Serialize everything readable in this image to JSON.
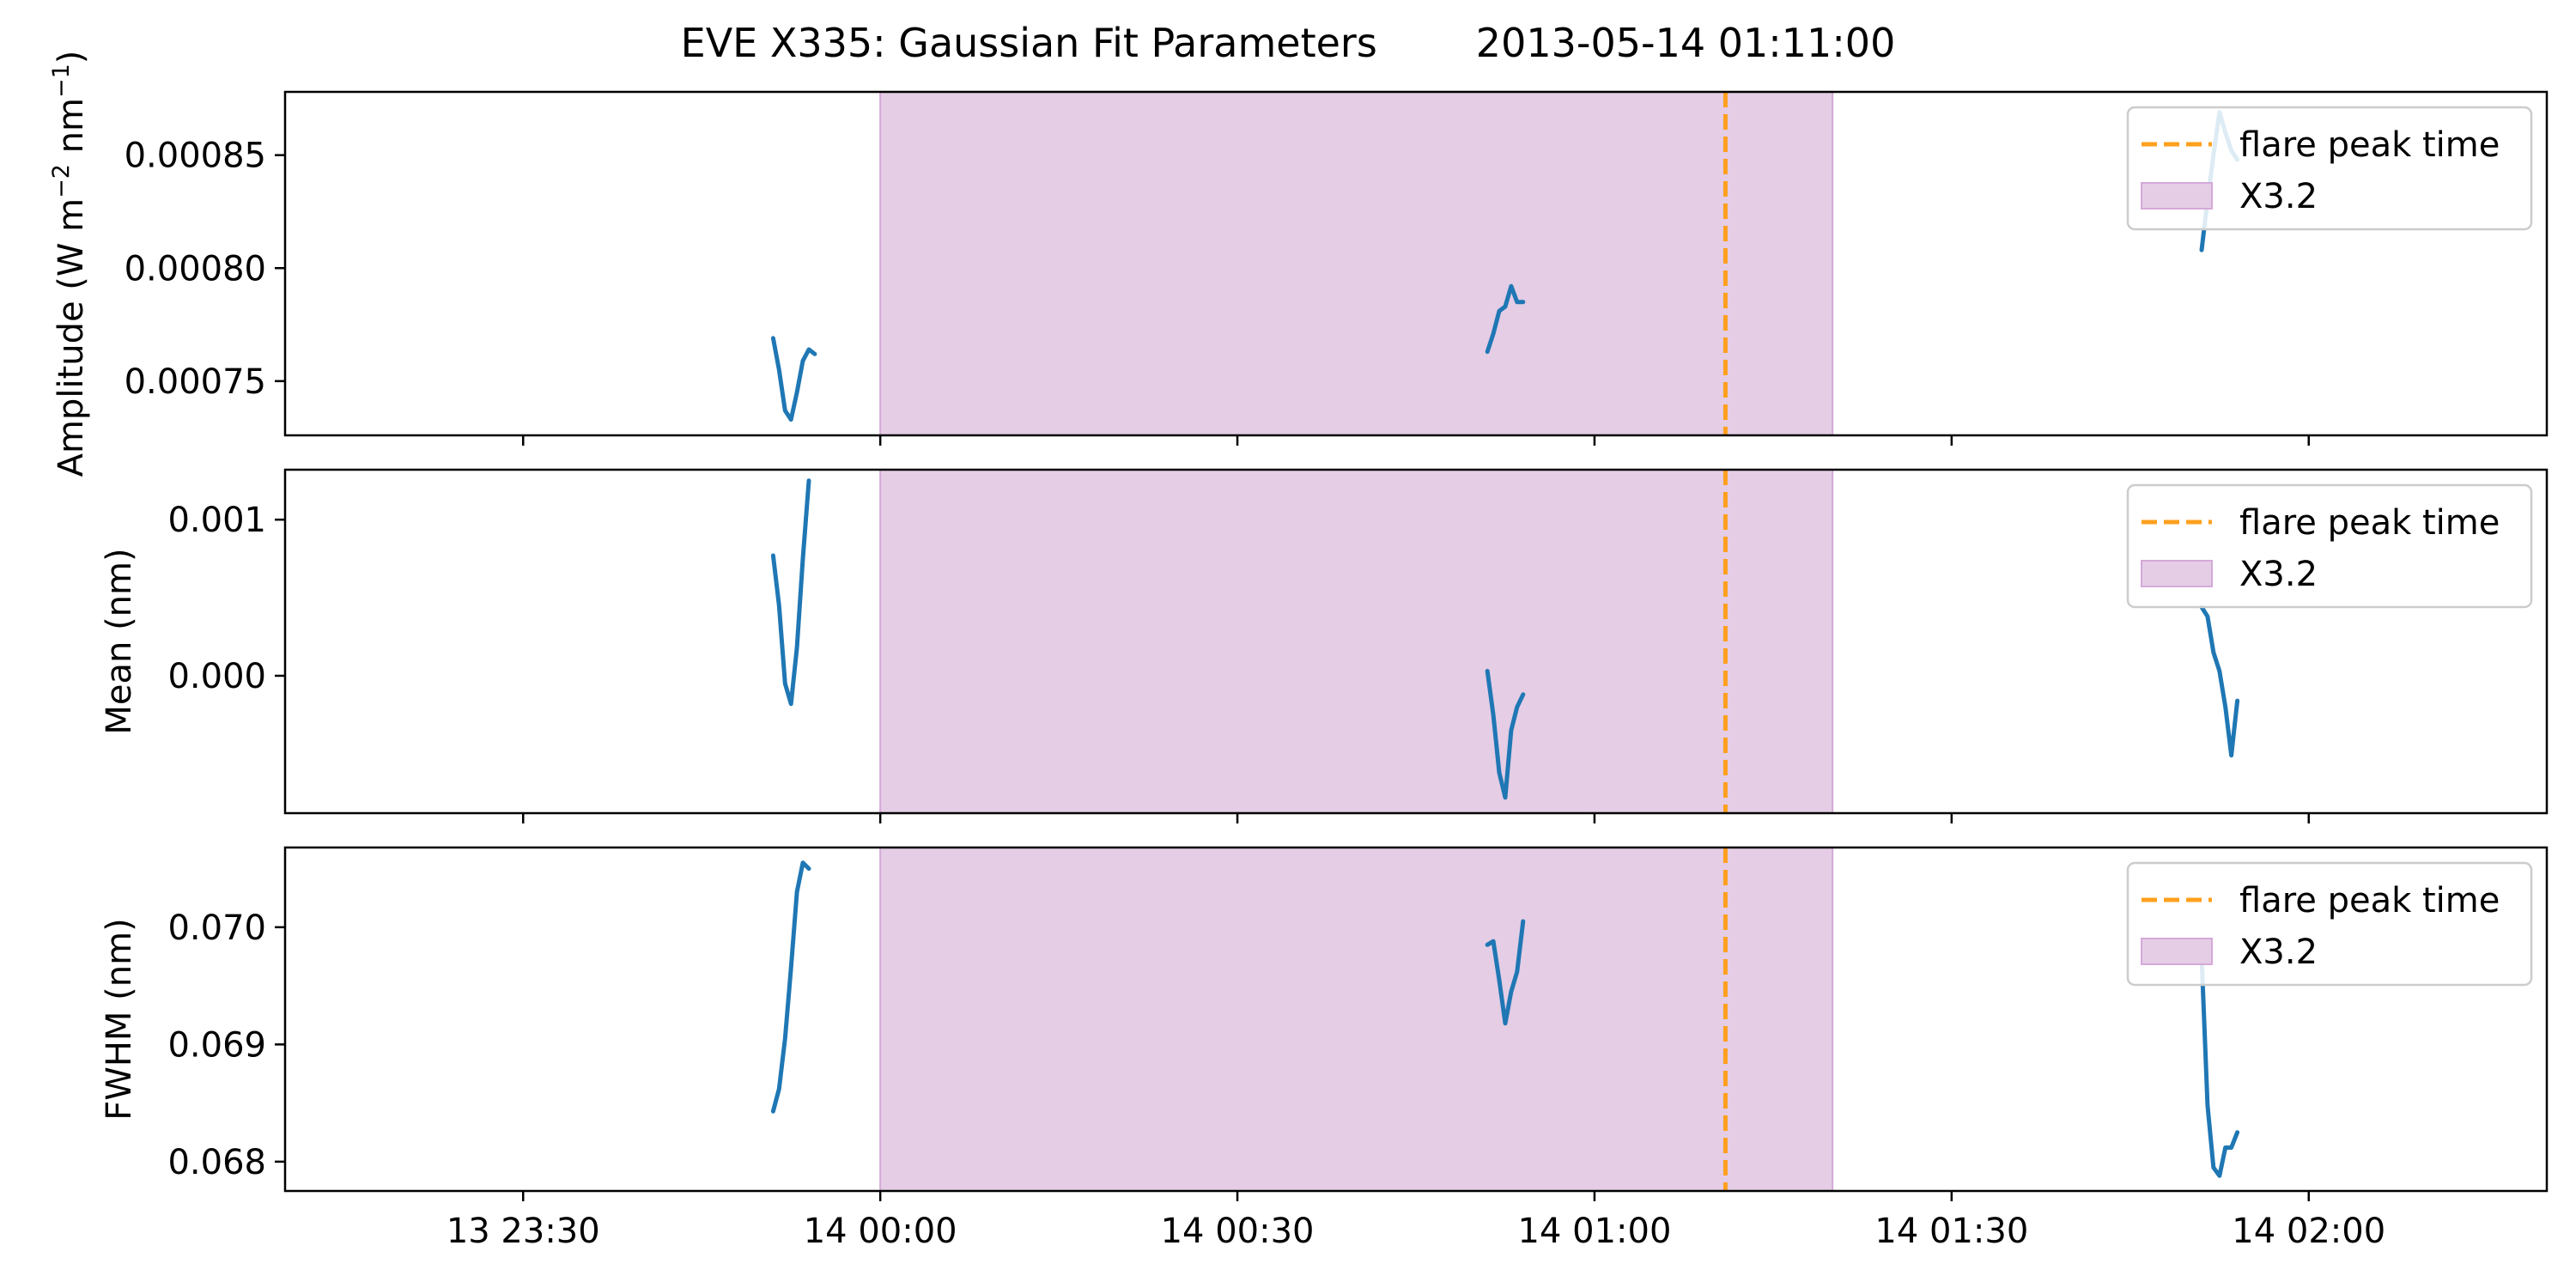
{
  "chart_data": {
    "type": "line",
    "title": "EVE X335: Gaussian Fit Parameters",
    "title_time": "2013-05-14 01:11:00",
    "x_axis": {
      "unit": "time",
      "range": [
        "2013-05-13 23:10",
        "2013-05-14 02:20"
      ],
      "ticks": [
        {
          "value": "2013-05-13 23:30",
          "label": "13 23:30"
        },
        {
          "value": "2013-05-14 00:00",
          "label": "14 00:00"
        },
        {
          "value": "2013-05-14 00:30",
          "label": "14 00:30"
        },
        {
          "value": "2013-05-14 01:00",
          "label": "14 01:00"
        },
        {
          "value": "2013-05-14 01:30",
          "label": "14 01:30"
        },
        {
          "value": "2013-05-14 02:00",
          "label": "14 02:00"
        }
      ]
    },
    "flare_peak_time": "2013-05-14 01:11",
    "flare_interval": {
      "start": "2013-05-14 00:00",
      "end": "2013-05-14 01:20",
      "label": "X3.2"
    },
    "legend": {
      "position": "upper right",
      "entries": [
        {
          "label": "flare peak time",
          "color": "#ff9f1c",
          "style": "dashed"
        },
        {
          "label": "X3.2",
          "color": "#e4cde6",
          "style": "patch"
        }
      ]
    },
    "colors": {
      "series": "#1f77b4",
      "peak": "#ffa01e",
      "shade": "#e4cde5",
      "shade_edge": "#d4a9d8"
    },
    "panels": [
      {
        "ylabel_parts": [
          "Amplitude (W m",
          "−2",
          " nm",
          "−1",
          ")"
        ],
        "ylim": [
          0.000726,
          0.000878
        ],
        "yticks": [
          {
            "value": 0.00075,
            "label": "0.00075"
          },
          {
            "value": 0.0008,
            "label": "0.00080"
          },
          {
            "value": 0.00085,
            "label": "0.00085"
          }
        ],
        "segments": [
          {
            "t": [
              "2013-05-13 23:51:00",
              "2013-05-13 23:51:30",
              "2013-05-13 23:52:00",
              "2013-05-13 23:52:30",
              "2013-05-13 23:53:00",
              "2013-05-13 23:53:30",
              "2013-05-13 23:54:00",
              "2013-05-13 23:54:30"
            ],
            "y": [
              0.000769,
              0.000755,
              0.000737,
              0.000733,
              0.000745,
              0.000759,
              0.000764,
              0.000762
            ]
          },
          {
            "t": [
              "2013-05-14 00:51:00",
              "2013-05-14 00:51:30",
              "2013-05-14 00:52:00",
              "2013-05-14 00:52:30",
              "2013-05-14 00:53:00",
              "2013-05-14 00:53:30",
              "2013-05-14 00:54:00"
            ],
            "y": [
              0.000763,
              0.000771,
              0.000781,
              0.000783,
              0.000792,
              0.000785,
              0.000785
            ]
          },
          {
            "t": [
              "2013-05-14 01:51:00",
              "2013-05-14 01:51:30",
              "2013-05-14 01:52:00",
              "2013-05-14 01:52:30",
              "2013-05-14 01:53:00",
              "2013-05-14 01:53:30",
              "2013-05-14 01:54:00"
            ],
            "y": [
              0.000808,
              0.00083,
              0.00085,
              0.000869,
              0.00086,
              0.000852,
              0.000848
            ]
          }
        ]
      },
      {
        "ylabel_parts": [
          "Mean (nm)"
        ],
        "ylim": [
          -0.00088,
          0.00132
        ],
        "yticks": [
          {
            "value": 0.0,
            "label": "0.000"
          },
          {
            "value": 0.001,
            "label": "0.001"
          }
        ],
        "segments": [
          {
            "t": [
              "2013-05-13 23:51:00",
              "2013-05-13 23:51:30",
              "2013-05-13 23:52:00",
              "2013-05-13 23:52:30",
              "2013-05-13 23:53:00",
              "2013-05-13 23:53:30",
              "2013-05-13 23:54:00"
            ],
            "y": [
              0.00077,
              0.00045,
              -5e-05,
              -0.00018,
              0.00018,
              0.00075,
              0.00125
            ]
          },
          {
            "t": [
              "2013-05-14 00:51:00",
              "2013-05-14 00:51:30",
              "2013-05-14 00:52:00",
              "2013-05-14 00:52:30",
              "2013-05-14 00:53:00",
              "2013-05-14 00:53:30",
              "2013-05-14 00:54:00"
            ],
            "y": [
              3e-05,
              -0.00025,
              -0.00062,
              -0.00078,
              -0.00035,
              -0.0002,
              -0.00012
            ]
          },
          {
            "t": [
              "2013-05-14 01:51:00",
              "2013-05-14 01:51:30",
              "2013-05-14 01:52:00",
              "2013-05-14 01:52:30",
              "2013-05-14 01:53:00",
              "2013-05-14 01:53:30",
              "2013-05-14 01:54:00"
            ],
            "y": [
              0.00044,
              0.00038,
              0.00015,
              3e-05,
              -0.0002,
              -0.00051,
              -0.00016
            ]
          }
        ]
      },
      {
        "ylabel_parts": [
          "FWHM (nm)"
        ],
        "ylim": [
          0.06775,
          0.07068
        ],
        "yticks": [
          {
            "value": 0.068,
            "label": "0.068"
          },
          {
            "value": 0.069,
            "label": "0.069"
          },
          {
            "value": 0.07,
            "label": "0.070"
          }
        ],
        "segments": [
          {
            "t": [
              "2013-05-13 23:51:00",
              "2013-05-13 23:51:30",
              "2013-05-13 23:52:00",
              "2013-05-13 23:52:30",
              "2013-05-13 23:53:00",
              "2013-05-13 23:53:30",
              "2013-05-13 23:54:00"
            ],
            "y": [
              0.06843,
              0.06862,
              0.06905,
              0.06965,
              0.0703,
              0.07055,
              0.0705
            ]
          },
          {
            "t": [
              "2013-05-14 00:51:00",
              "2013-05-14 00:51:30",
              "2013-05-14 00:52:00",
              "2013-05-14 00:52:30",
              "2013-05-14 00:53:00",
              "2013-05-14 00:53:30",
              "2013-05-14 00:54:00"
            ],
            "y": [
              0.06985,
              0.06988,
              0.06955,
              0.06918,
              0.06945,
              0.06962,
              0.07005
            ]
          },
          {
            "t": [
              "2013-05-14 01:51:00",
              "2013-05-14 01:51:30",
              "2013-05-14 01:52:00",
              "2013-05-14 01:52:30",
              "2013-05-14 01:53:00",
              "2013-05-14 01:53:30",
              "2013-05-14 01:54:00"
            ],
            "y": [
              0.06975,
              0.06848,
              0.06795,
              0.06788,
              0.06812,
              0.06812,
              0.06825
            ]
          }
        ]
      }
    ]
  }
}
